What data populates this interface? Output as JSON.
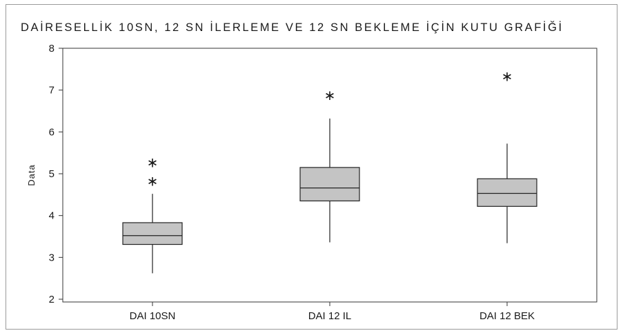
{
  "chart_data": {
    "type": "boxplot",
    "title": "DAİRESELLİK 10SN, 12 SN İLERLEME VE 12 SN BEKLEME İÇİN KUTU GRAFİĞİ",
    "xlabel": "",
    "ylabel": "Data",
    "ylim": [
      2,
      8
    ],
    "yticks": [
      2,
      3,
      4,
      5,
      6,
      7,
      8
    ],
    "grid": false,
    "box_color": "#c4c4c4",
    "line_color": "#222222",
    "categories": [
      "DAI 10SN",
      "DAI 12 IL",
      "DAI 12 BEK"
    ],
    "boxes": [
      {
        "name": "DAI 10SN",
        "whisker_low": 2.62,
        "q1": 3.31,
        "median": 3.52,
        "q3": 3.83,
        "whisker_high": 4.52,
        "outliers": [
          4.88,
          5.32
        ]
      },
      {
        "name": "DAI 12 IL",
        "whisker_low": 3.36,
        "q1": 4.35,
        "median": 4.66,
        "q3": 5.15,
        "whisker_high": 6.32,
        "outliers": [
          6.93
        ]
      },
      {
        "name": "DAI 12 BEK",
        "whisker_low": 3.34,
        "q1": 4.22,
        "median": 4.53,
        "q3": 4.88,
        "whisker_high": 5.72,
        "outliers": [
          7.38
        ]
      }
    ]
  }
}
